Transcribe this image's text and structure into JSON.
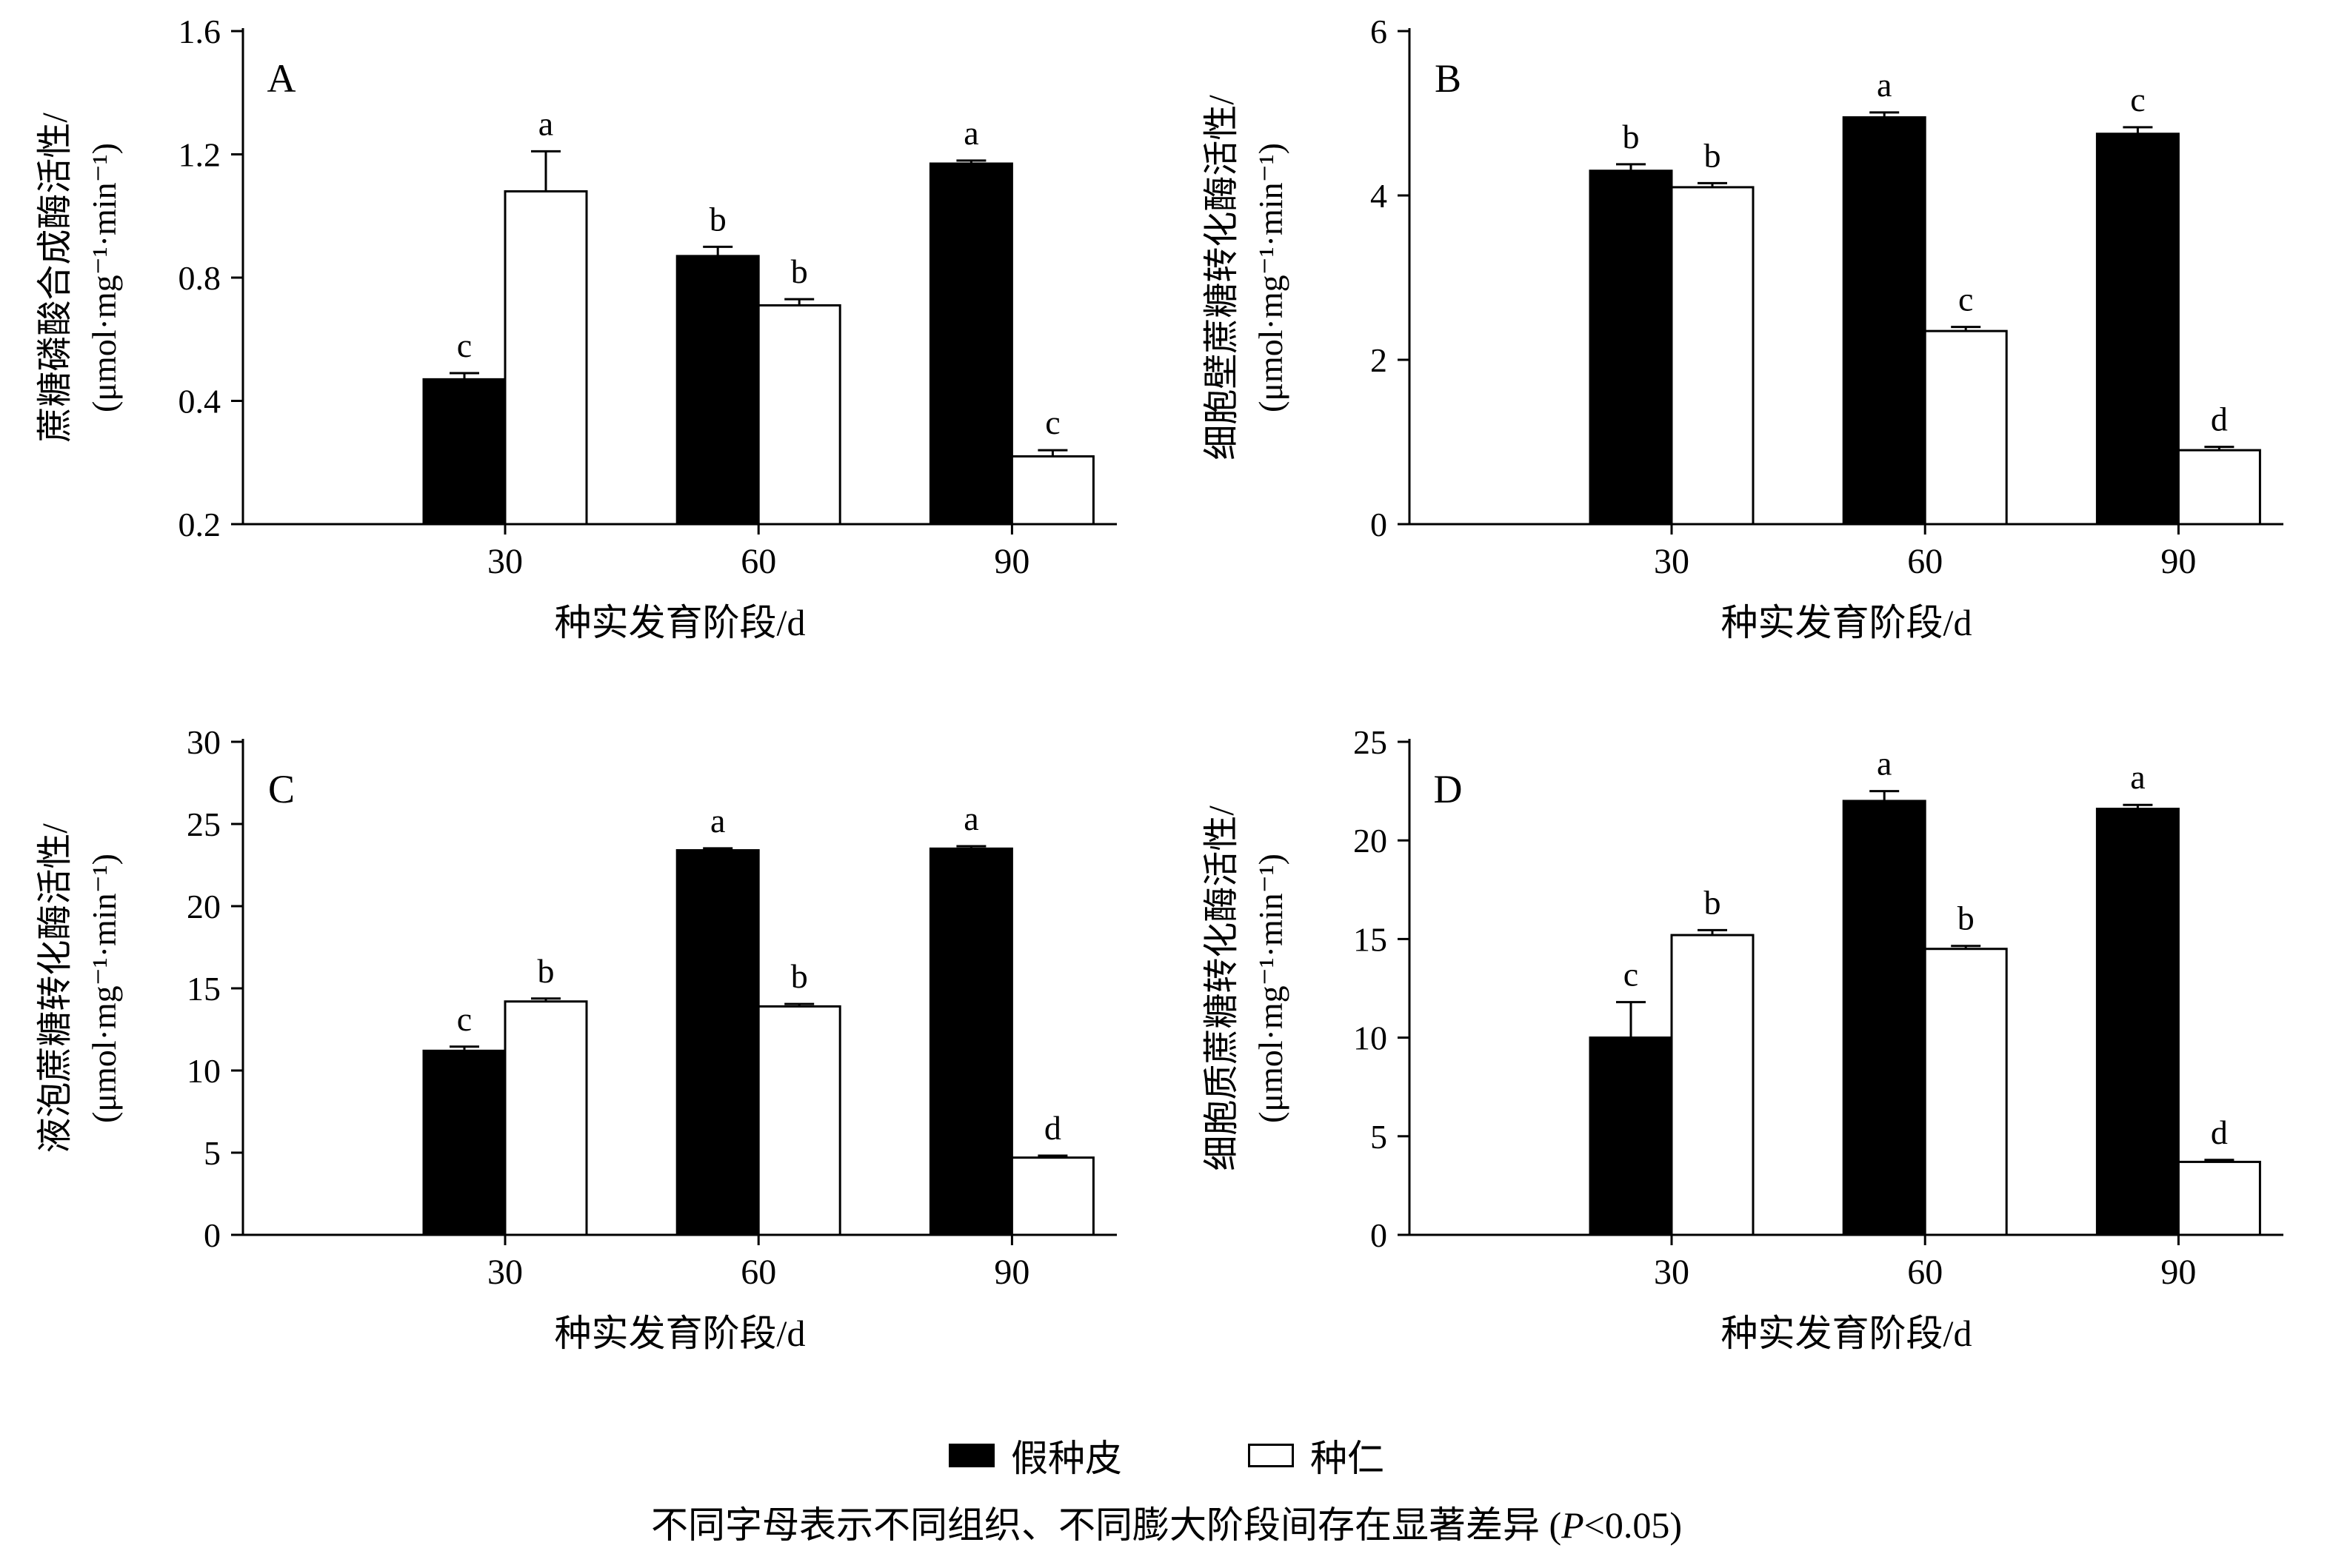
{
  "page": {
    "background": "#ffffff",
    "axis_color": "#000000"
  },
  "legend": {
    "items": [
      {
        "label": "假种皮",
        "style": "filled",
        "fill": "#000000"
      },
      {
        "label": "种仁",
        "style": "outlined",
        "fill": "#ffffff"
      }
    ]
  },
  "footnote": {
    "prefix": "不同字母表示不同组织、不同膨大阶段间存在显著差异 (",
    "italic": "P",
    "suffix": "<0.05)"
  },
  "chart_data": [
    {
      "type": "bar",
      "panel": "A",
      "ylabel_line1": "蔗糖磷酸合成酶活性/",
      "ylabel_line2": "(μmol·mg⁻¹·min⁻¹)",
      "xlabel": "种实发育阶段/d",
      "categories": [
        "30",
        "60",
        "90"
      ],
      "yticks": [
        0.2,
        0.4,
        0.8,
        1.2,
        1.6
      ],
      "ytick_labels": [
        "0.2",
        "0.4",
        "0.8",
        "1.2",
        "1.6"
      ],
      "ylim": [
        0.2,
        1.6
      ],
      "series": [
        {
          "name": "假种皮",
          "fill": "black",
          "values": [
            0.47,
            0.87,
            1.17
          ],
          "errors": [
            0.02,
            0.03,
            0.01
          ],
          "letters": [
            "c",
            "b",
            "a"
          ]
        },
        {
          "name": "种仁",
          "fill": "white",
          "values": [
            1.08,
            0.71,
            0.31
          ],
          "errors": [
            0.13,
            0.02,
            0.01
          ],
          "letters": [
            "a",
            "b",
            "c"
          ]
        }
      ]
    },
    {
      "type": "bar",
      "panel": "B",
      "ylabel_line1": "细胞壁蔗糖转化酶活性/",
      "ylabel_line2": "(μmol·mg⁻¹·min⁻¹)",
      "xlabel": "种实发育阶段/d",
      "categories": [
        "30",
        "60",
        "90"
      ],
      "yticks": [
        0,
        2,
        4,
        6
      ],
      "ytick_labels": [
        "0",
        "2",
        "4",
        "6"
      ],
      "ylim": [
        0,
        6
      ],
      "series": [
        {
          "name": "假种皮",
          "fill": "black",
          "values": [
            4.3,
            4.95,
            4.75
          ],
          "errors": [
            0.08,
            0.06,
            0.08
          ],
          "letters": [
            "b",
            "a",
            "c"
          ]
        },
        {
          "name": "种仁",
          "fill": "white",
          "values": [
            4.1,
            2.35,
            0.9
          ],
          "errors": [
            0.05,
            0.05,
            0.04
          ],
          "letters": [
            "b",
            "c",
            "d"
          ]
        }
      ]
    },
    {
      "type": "bar",
      "panel": "C",
      "ylabel_line1": "液泡蔗糖转化酶活性/",
      "ylabel_line2": "(μmol·mg⁻¹·min⁻¹)",
      "xlabel": "种实发育阶段/d",
      "categories": [
        "30",
        "60",
        "90"
      ],
      "yticks": [
        0,
        5,
        10,
        15,
        20,
        25,
        30
      ],
      "ytick_labels": [
        "0",
        "5",
        "10",
        "15",
        "20",
        "25",
        "30"
      ],
      "ylim": [
        0,
        30
      ],
      "series": [
        {
          "name": "假种皮",
          "fill": "black",
          "values": [
            11.2,
            23.4,
            23.5
          ],
          "errors": [
            0.25,
            0.12,
            0.15
          ],
          "letters": [
            "c",
            "a",
            "a"
          ]
        },
        {
          "name": "种仁",
          "fill": "white",
          "values": [
            14.2,
            13.9,
            4.7
          ],
          "errors": [
            0.18,
            0.15,
            0.12
          ],
          "letters": [
            "b",
            "b",
            "d"
          ]
        }
      ]
    },
    {
      "type": "bar",
      "panel": "D",
      "ylabel_line1": "细胞质蔗糖转化酶活性/",
      "ylabel_line2": "(μmol·mg⁻¹·min⁻¹)",
      "xlabel": "种实发育阶段/d",
      "categories": [
        "30",
        "60",
        "90"
      ],
      "yticks": [
        0,
        5,
        10,
        15,
        20,
        25
      ],
      "ytick_labels": [
        "0",
        "5",
        "10",
        "15",
        "20",
        "25"
      ],
      "ylim": [
        0,
        25
      ],
      "series": [
        {
          "name": "假种皮",
          "fill": "black",
          "values": [
            10.0,
            22.0,
            21.6
          ],
          "errors": [
            1.8,
            0.5,
            0.2
          ],
          "letters": [
            "c",
            "a",
            "a"
          ]
        },
        {
          "name": "种仁",
          "fill": "white",
          "values": [
            15.2,
            14.5,
            3.7
          ],
          "errors": [
            0.25,
            0.15,
            0.1
          ],
          "letters": [
            "b",
            "b",
            "d"
          ]
        }
      ]
    }
  ]
}
